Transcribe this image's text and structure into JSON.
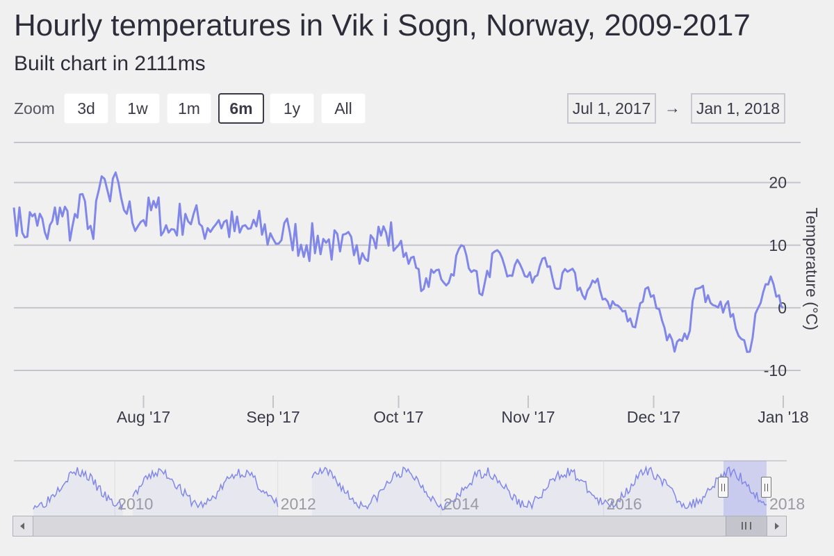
{
  "title": "Hourly temperatures in Vik i Sogn, Norway, 2009-2017",
  "subtitle": "Built chart in 2111ms",
  "range_selector": {
    "zoom_label": "Zoom",
    "buttons": [
      "3d",
      "1w",
      "1m",
      "6m",
      "1y",
      "All"
    ],
    "selected": "6m",
    "from": "Jul 1, 2017",
    "arrow": "→",
    "to": "Jan 1, 2018"
  },
  "colors": {
    "series": "#8087e8",
    "grid": "#c4c4cc",
    "navigator_mask": "rgba(128,135,232,0.3)",
    "text": "#3a3a48"
  },
  "chart_data": {
    "type": "line",
    "title": "Hourly temperatures in Vik i Sogn, Norway, 2009-2017",
    "subtitle": "Built chart in 2111ms",
    "ylabel": "Temperature (°C)",
    "ylim": [
      -10,
      20
    ],
    "yticks": [
      20,
      10,
      0,
      -10
    ],
    "xlim": [
      "2017-07-01",
      "2018-01-01"
    ],
    "xticks": [
      {
        "date": "2017-08-01",
        "label": "Aug '17"
      },
      {
        "date": "2017-09-01",
        "label": "Sep '17"
      },
      {
        "date": "2017-10-01",
        "label": "Oct '17"
      },
      {
        "date": "2017-11-01",
        "label": "Nov '17"
      },
      {
        "date": "2017-12-01",
        "label": "Dec '17"
      },
      {
        "date": "2018-01-01",
        "label": "Jan '18"
      }
    ],
    "grid": true,
    "series": [
      {
        "values": [
          [
            "2017-07-01",
            16
          ],
          [
            "2017-07-03",
            12
          ],
          [
            "2017-07-06",
            15
          ],
          [
            "2017-07-09",
            11
          ],
          [
            "2017-07-12",
            16
          ],
          [
            "2017-07-15",
            13
          ],
          [
            "2017-07-18",
            17
          ],
          [
            "2017-07-20",
            11
          ],
          [
            "2017-07-22",
            21
          ],
          [
            "2017-07-24",
            17
          ],
          [
            "2017-07-26",
            20
          ],
          [
            "2017-07-28",
            15
          ],
          [
            "2017-08-01",
            14
          ],
          [
            "2017-08-04",
            16
          ],
          [
            "2017-08-07",
            12
          ],
          [
            "2017-08-11",
            15
          ],
          [
            "2017-08-15",
            13
          ],
          [
            "2017-08-19",
            14
          ],
          [
            "2017-08-24",
            12
          ],
          [
            "2017-08-28",
            13
          ],
          [
            "2017-09-01",
            11
          ],
          [
            "2017-09-05",
            12
          ],
          [
            "2017-09-09",
            10
          ],
          [
            "2017-09-13",
            11
          ],
          [
            "2017-09-17",
            9
          ],
          [
            "2017-09-21",
            10
          ],
          [
            "2017-09-25",
            11
          ],
          [
            "2017-09-28",
            12
          ],
          [
            "2017-10-01",
            10
          ],
          [
            "2017-10-04",
            8
          ],
          [
            "2017-10-07",
            3
          ],
          [
            "2017-10-10",
            6
          ],
          [
            "2017-10-13",
            4
          ],
          [
            "2017-10-16",
            10
          ],
          [
            "2017-10-19",
            6
          ],
          [
            "2017-10-21",
            2
          ],
          [
            "2017-10-24",
            9
          ],
          [
            "2017-10-27",
            5
          ],
          [
            "2017-10-30",
            7
          ],
          [
            "2017-11-02",
            4
          ],
          [
            "2017-11-05",
            8
          ],
          [
            "2017-11-08",
            3
          ],
          [
            "2017-11-11",
            6
          ],
          [
            "2017-11-14",
            2
          ],
          [
            "2017-11-17",
            4
          ],
          [
            "2017-11-20",
            1
          ],
          [
            "2017-11-23",
            0
          ],
          [
            "2017-11-26",
            -3
          ],
          [
            "2017-11-29",
            3
          ],
          [
            "2017-12-01",
            2
          ],
          [
            "2017-12-03",
            -2
          ],
          [
            "2017-12-06",
            -7
          ],
          [
            "2017-12-09",
            -5
          ],
          [
            "2017-12-11",
            3
          ],
          [
            "2017-12-14",
            2
          ],
          [
            "2017-12-17",
            1
          ],
          [
            "2017-12-20",
            -1
          ],
          [
            "2017-12-22",
            -5
          ],
          [
            "2017-12-24",
            -7
          ],
          [
            "2017-12-26",
            0
          ],
          [
            "2017-12-29",
            5
          ],
          [
            "2017-12-31",
            2
          ],
          [
            "2018-01-01",
            0
          ]
        ]
      }
    ],
    "navigator": {
      "xticks": [
        "2010",
        "2012",
        "2014",
        "2016",
        "2018"
      ],
      "selected_range": [
        "2017-07-01",
        "2018-01-01"
      ]
    }
  }
}
